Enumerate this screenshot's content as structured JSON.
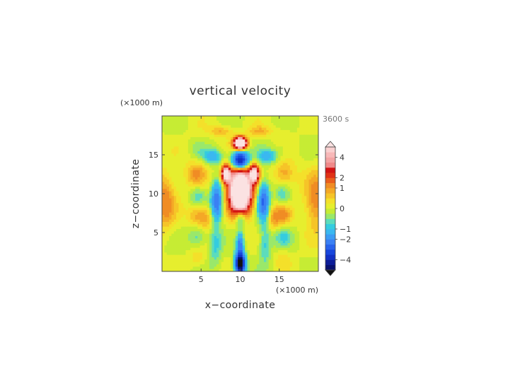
{
  "chart_data": {
    "type": "heatmap",
    "title": "vertical velocity",
    "time_label": "3600 s",
    "xlabel": "x−coordinate",
    "ylabel": "z−coordinate",
    "x_unit": "(×1000 m)",
    "z_unit": "(×1000 m)",
    "xlim": [
      0,
      20
    ],
    "ylim": [
      0,
      20
    ],
    "x_ticks": [
      5,
      10,
      15
    ],
    "y_ticks": [
      5,
      10,
      15
    ],
    "colorbar": {
      "tick_labels": [
        "4",
        "2",
        "1",
        "0",
        "−1",
        "−2",
        "−4"
      ],
      "tick_values": [
        4,
        2,
        1,
        0,
        -1,
        -2,
        -4
      ],
      "levels": [
        -5,
        -4.5,
        -4,
        -3.5,
        -3,
        -2.5,
        -2,
        -1.5,
        -1,
        -0.75,
        -0.5,
        -0.25,
        0,
        0.25,
        0.5,
        0.75,
        1,
        1.5,
        2,
        2.5,
        3,
        3.5,
        4,
        4.5,
        5
      ],
      "colors": [
        "#08106e",
        "#0c1c98",
        "#1230c4",
        "#1846dc",
        "#2862ec",
        "#3a80f4",
        "#3c9cf4",
        "#3ab8f0",
        "#34cce0",
        "#5cdcbc",
        "#9ae86a",
        "#c6ec34",
        "#e6ee2e",
        "#f4e02a",
        "#f6c428",
        "#f4a826",
        "#f08c24",
        "#ea5e1c",
        "#e03216",
        "#d21414",
        "#f08a8a",
        "#f4a4a4",
        "#f8b8b8",
        "#fad0d0"
      ],
      "under_color": "#111111",
      "over_color": "#fbe2e2"
    },
    "features": [
      {
        "name": "central updraft core",
        "x": 10.0,
        "z": 10.3,
        "value": 5,
        "sign": "positive"
      },
      {
        "name": "upper updraft cell",
        "x": 10.0,
        "z": 16.5,
        "value": 4.5,
        "sign": "positive"
      },
      {
        "name": "left updraft cell",
        "x": 8.2,
        "z": 12.5,
        "value": 3.5,
        "sign": "positive"
      },
      {
        "name": "right updraft cell",
        "x": 11.8,
        "z": 12.5,
        "value": 3.5,
        "sign": "positive"
      },
      {
        "name": "downdraft above core",
        "x": 10.0,
        "z": 14.5,
        "value": -3,
        "sign": "negative"
      },
      {
        "name": "downdraft near surface",
        "x": 10.0,
        "z": 1.2,
        "value": -3.5,
        "sign": "negative"
      },
      {
        "name": "left flank downdraft",
        "x": 7.0,
        "z": 9.0,
        "value": -1.5,
        "sign": "negative"
      },
      {
        "name": "right flank downdraft",
        "x": 13.0,
        "z": 9.0,
        "value": -1.5,
        "sign": "negative"
      },
      {
        "name": "left edge updraft band",
        "x": 0.5,
        "z": 9.0,
        "value": 1,
        "sign": "positive"
      },
      {
        "name": "right edge updraft band",
        "x": 19.5,
        "z": 9.0,
        "value": 1,
        "sign": "positive"
      }
    ]
  }
}
